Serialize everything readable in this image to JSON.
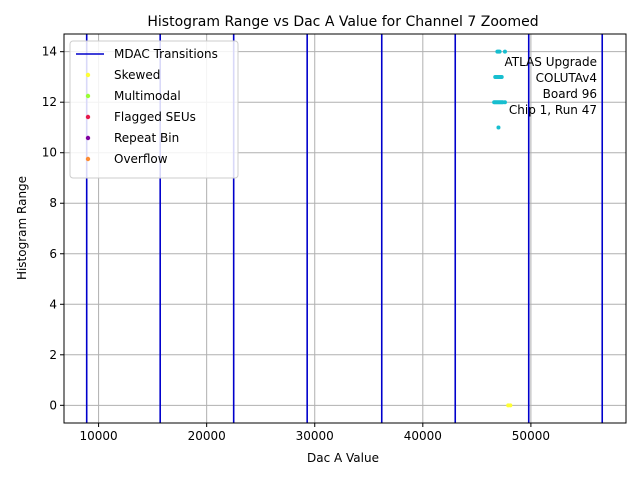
{
  "chart_data": {
    "type": "scatter",
    "title": "Histogram Range vs Dac A Value for Channel 7 Zoomed",
    "xlabel": "Dac A Value",
    "ylabel": "Histogram Range",
    "xlim": [
      6800,
      58800
    ],
    "ylim": [
      -0.7,
      14.7
    ],
    "x_ticks": [
      10000,
      20000,
      30000,
      40000,
      50000
    ],
    "x_tick_labels": [
      "10000",
      "20000",
      "30000",
      "40000",
      "50000"
    ],
    "y_ticks": [
      0,
      2,
      4,
      6,
      8,
      10,
      12,
      14
    ],
    "y_tick_labels": [
      "0",
      "2",
      "4",
      "6",
      "8",
      "10",
      "12",
      "14"
    ],
    "grid": true,
    "legend_position": "top-left",
    "mdac_transitions": {
      "name": "MDAC Transitions",
      "color": "#0000cc",
      "x": [
        8900,
        15700,
        22500,
        29300,
        36200,
        43000,
        49800,
        56600
      ]
    },
    "series": [
      {
        "name": "Skewed",
        "color": "#ffff33",
        "points": [
          [
            47900,
            0
          ],
          [
            48100,
            0
          ]
        ]
      },
      {
        "name": "Multimodal",
        "color": "#99ff33",
        "points": []
      },
      {
        "name": "Flagged SEUs",
        "color": "#e6194b",
        "points": []
      },
      {
        "name": "Repeat Bin",
        "color": "#8000a0",
        "points": []
      },
      {
        "name": "Overflow",
        "color": "#ff8c33",
        "points": []
      }
    ],
    "other_points": {
      "color": "#17becf",
      "points": [
        [
          46900,
          14
        ],
        [
          47000,
          14
        ],
        [
          47100,
          14
        ],
        [
          47600,
          14
        ],
        [
          46700,
          13
        ],
        [
          46800,
          13
        ],
        [
          46900,
          13
        ],
        [
          47000,
          13
        ],
        [
          47100,
          13
        ],
        [
          47200,
          13
        ],
        [
          47300,
          13
        ],
        [
          46600,
          12
        ],
        [
          46700,
          12
        ],
        [
          46800,
          12
        ],
        [
          46900,
          12
        ],
        [
          47000,
          12
        ],
        [
          47100,
          12
        ],
        [
          47200,
          12
        ],
        [
          47300,
          12
        ],
        [
          47400,
          12
        ],
        [
          47600,
          12
        ],
        [
          47000,
          11
        ]
      ]
    },
    "annotation_lines": [
      "ATLAS Upgrade",
      "COLUTAv4",
      "Board 96",
      "Chip 1, Run 47"
    ]
  }
}
